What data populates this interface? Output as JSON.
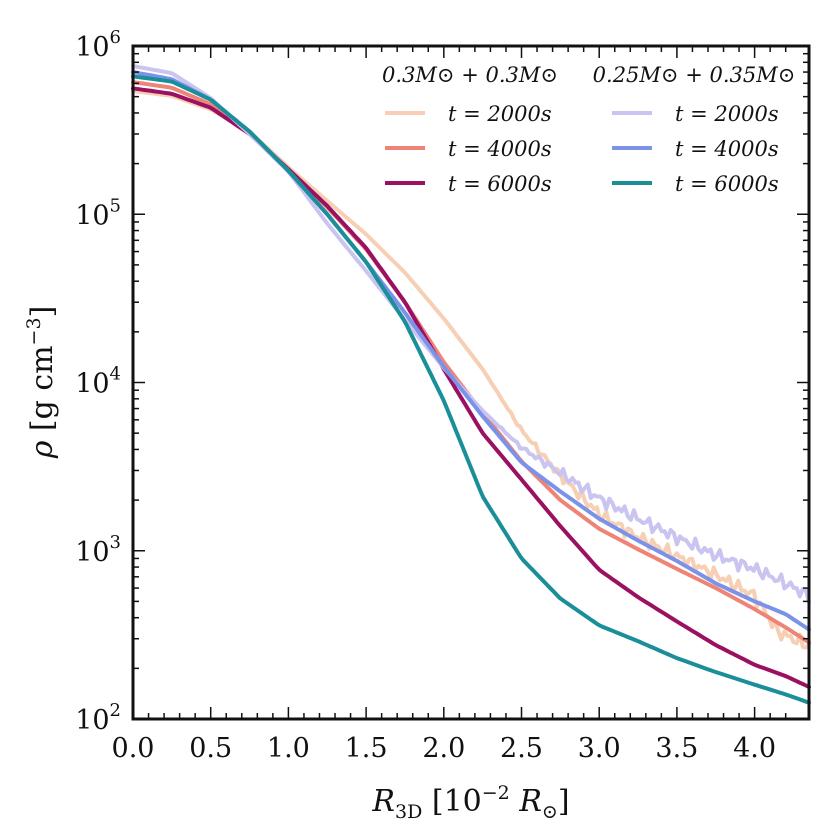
{
  "chart_data": {
    "type": "line",
    "title": "",
    "xlabel": "R_3D [10^-2 R_sun]",
    "ylabel": "rho [g cm^-3]",
    "xlim": [
      0.0,
      4.35
    ],
    "ylim": [
      100,
      1000000
    ],
    "yscale": "log",
    "grid": false,
    "legend_position": "top-right",
    "x_ticks": [
      "0.0",
      "0.5",
      "1.0",
      "1.5",
      "2.0",
      "2.5",
      "3.0",
      "3.5",
      "4.0"
    ],
    "y_ticks": [
      {
        "base": "10",
        "exp": "2"
      },
      {
        "base": "10",
        "exp": "3"
      },
      {
        "base": "10",
        "exp": "4"
      },
      {
        "base": "10",
        "exp": "5"
      },
      {
        "base": "10",
        "exp": "6"
      }
    ],
    "legend_groups": [
      {
        "title": "0.3M⊙ + 0.3M⊙",
        "color": "#9b1162"
      },
      {
        "title": "0.25M⊙ + 0.35M⊙",
        "color": "#1b8f99"
      }
    ],
    "series": [
      {
        "name": "t = 2000s",
        "group": 0,
        "color": "#f6cfb4",
        "noisy": true,
        "x": [
          0.0,
          0.25,
          0.5,
          0.75,
          1.0,
          1.25,
          1.5,
          1.75,
          2.0,
          2.25,
          2.5,
          2.75,
          3.0,
          3.25,
          3.5,
          3.75,
          4.0,
          4.15,
          4.35
        ],
        "y": [
          540000,
          505000,
          420000,
          310000,
          190000,
          120000,
          76000,
          45000,
          24000,
          12000,
          5200,
          2800,
          1650,
          1200,
          930,
          720,
          540,
          330,
          270
        ]
      },
      {
        "name": "t = 4000s",
        "group": 0,
        "color": "#ee8476",
        "noisy": false,
        "x": [
          0.0,
          0.25,
          0.5,
          0.75,
          1.0,
          1.25,
          1.5,
          1.75,
          2.0,
          2.25,
          2.5,
          2.75,
          3.0,
          3.25,
          3.5,
          3.75,
          4.0,
          4.2,
          4.35
        ],
        "y": [
          610000,
          565000,
          450000,
          305000,
          185000,
          110000,
          62000,
          30000,
          13200,
          6600,
          3400,
          2000,
          1350,
          1020,
          780,
          600,
          450,
          350,
          285
        ]
      },
      {
        "name": "t = 6000s",
        "group": 0,
        "color": "#9b1162",
        "noisy": false,
        "x": [
          0.0,
          0.25,
          0.5,
          0.75,
          1.0,
          1.25,
          1.5,
          1.75,
          2.0,
          2.25,
          2.5,
          2.75,
          3.0,
          3.25,
          3.5,
          3.75,
          4.0,
          4.2,
          4.35
        ],
        "y": [
          560000,
          520000,
          430000,
          300000,
          185000,
          112000,
          63000,
          30000,
          12000,
          5000,
          2650,
          1400,
          770,
          530,
          380,
          275,
          210,
          180,
          155
        ]
      },
      {
        "name": "t = 2000s",
        "group": 1,
        "color": "#cac5f0",
        "noisy": true,
        "x": [
          0.0,
          0.25,
          0.5,
          0.75,
          1.0,
          1.25,
          1.5,
          1.75,
          2.0,
          2.25,
          2.5,
          2.75,
          3.0,
          3.25,
          3.5,
          3.75,
          4.0,
          4.2,
          4.35
        ],
        "y": [
          760000,
          690000,
          490000,
          300000,
          180000,
          88000,
          46000,
          23500,
          12200,
          6800,
          4100,
          2900,
          2050,
          1550,
          1200,
          940,
          780,
          640,
          540
        ]
      },
      {
        "name": "t = 4000s",
        "group": 1,
        "color": "#7a92e8",
        "noisy": false,
        "x": [
          0.0,
          0.25,
          0.5,
          0.75,
          1.0,
          1.25,
          1.5,
          1.75,
          2.0,
          2.25,
          2.5,
          2.75,
          3.0,
          3.25,
          3.5,
          3.75,
          4.0,
          4.2,
          4.35
        ],
        "y": [
          700000,
          635000,
          480000,
          310000,
          180000,
          100000,
          52000,
          26000,
          12400,
          6300,
          3350,
          2250,
          1550,
          1150,
          870,
          640,
          500,
          420,
          340
        ]
      },
      {
        "name": "t = 6000s",
        "group": 1,
        "color": "#1b8f99",
        "noisy": false,
        "x": [
          0.0,
          0.25,
          0.5,
          0.75,
          1.0,
          1.25,
          1.5,
          1.75,
          2.0,
          2.25,
          2.5,
          2.75,
          3.0,
          3.25,
          3.5,
          3.75,
          4.0,
          4.2,
          4.35
        ],
        "y": [
          660000,
          615000,
          480000,
          310000,
          182000,
          100000,
          52000,
          23000,
          7800,
          2100,
          900,
          520,
          360,
          290,
          230,
          190,
          160,
          140,
          125
        ]
      }
    ]
  }
}
